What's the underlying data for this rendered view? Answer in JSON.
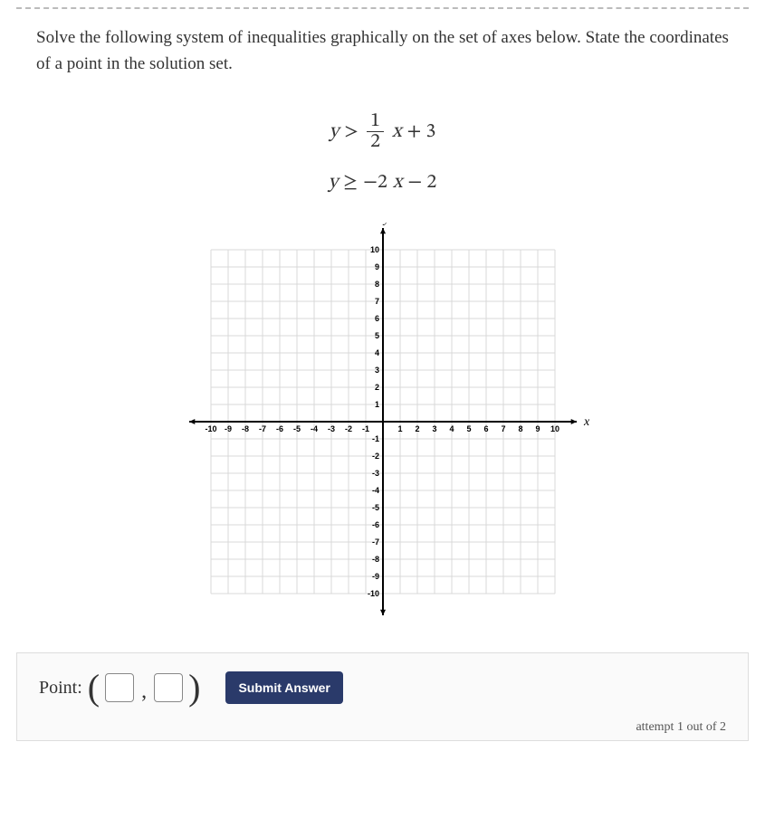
{
  "prompt": "Solve the following system of inequalities graphically on the set of axes below. State the coordinates of a point in the solution set.",
  "eq1": {
    "lhs_var": "y",
    "op": ">",
    "frac_num": "1",
    "frac_den": "2",
    "rhs_var": "x",
    "tail": " + 3"
  },
  "eq2": {
    "lhs_var": "y",
    "op": "≥",
    "rhs": "−2x − 2",
    "rhs_var": "x"
  },
  "graph": {
    "x_min": -10,
    "x_max": 10,
    "y_min": -10,
    "y_max": 10,
    "x_axis_label": "x",
    "y_axis_label": "y",
    "grid_color": "#d8d8d8",
    "axis_color": "#000000",
    "background": "#ffffff",
    "tick_fontsize": 9,
    "axis_label_fontsize": 14
  },
  "answer": {
    "label": "Point:",
    "x_value": "",
    "y_value": ""
  },
  "submit_label": "Submit Answer",
  "attempt_text": "attempt 1 out of 2"
}
